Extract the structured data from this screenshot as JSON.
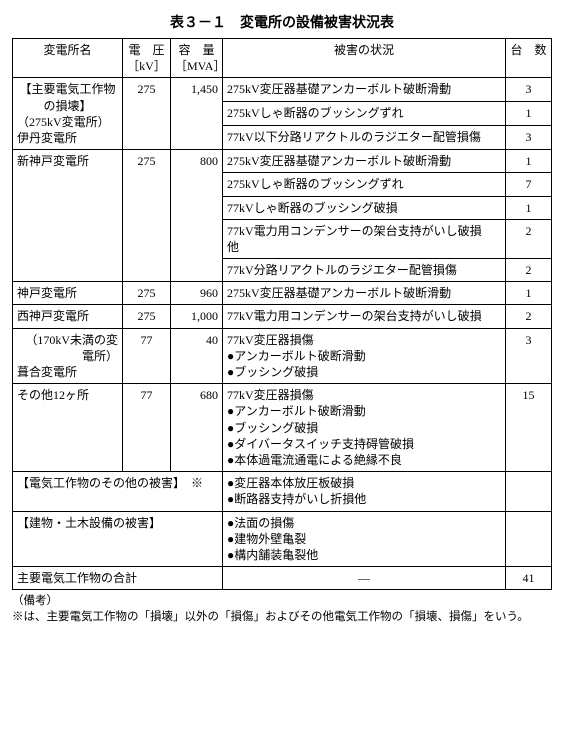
{
  "title": "表３－１　変電所の設備被害状況表",
  "headers": {
    "name": "変電所名",
    "kv": "電　圧\n［kV］",
    "mva": "容　量\n［MVA］",
    "damage": "被害の状況",
    "count": "台　数"
  },
  "sections": {
    "major_275_head1": "【主要電気工作物の損壊】",
    "major_275_head2": "（275kV変電所）",
    "itami": {
      "name": "伊丹変電所",
      "kv": "275",
      "mva": "1,450",
      "rows": [
        {
          "damage": "275kV変圧器基礎アンカーボルト破断滑動",
          "count": "3"
        },
        {
          "damage": "275kVしゃ断器のブッシングずれ",
          "count": "1"
        },
        {
          "damage": "77kV以下分路リアクトルのラジエター配管損傷",
          "count": "3"
        }
      ]
    },
    "shinkobe": {
      "name": "新神戸変電所",
      "kv": "275",
      "mva": "800",
      "rows": [
        {
          "damage": "275kV変圧器基礎アンカーボルト破断滑動",
          "count": "1"
        },
        {
          "damage": "275kVしゃ断器のブッシングずれ",
          "count": "7"
        },
        {
          "damage": "77kVしゃ断器のブッシング破損",
          "count": "1"
        },
        {
          "damage": "77kV電力用コンデンサーの架台支持がいし破損　他",
          "count": "2"
        },
        {
          "damage": "77kV分路リアクトルのラジエター配管損傷",
          "count": "2"
        }
      ]
    },
    "kobe": {
      "name": "神戸変電所",
      "kv": "275",
      "mva": "960",
      "rows": [
        {
          "damage": "275kV変圧器基礎アンカーボルト破断滑動",
          "count": "1"
        }
      ]
    },
    "nishikobe": {
      "name": "西神戸変電所",
      "kv": "275",
      "mva": "1,000",
      "rows": [
        {
          "damage": "77kV電力用コンデンサーの架台支持がいし破損",
          "count": "2"
        }
      ]
    },
    "lt170_head": "（170kV未満の変電所）",
    "houai": {
      "name": "葺合変電所",
      "kv": "77",
      "mva": "40",
      "lead": "77kV変圧器損傷",
      "bullets": [
        "アンカーボルト破断滑動",
        "ブッシング破損"
      ],
      "count": "3"
    },
    "others12": {
      "name": "その他12ヶ所",
      "kv": "77",
      "mva": "680",
      "lead": "77kV変圧器損傷",
      "bullets": [
        "アンカーボルト破断滑動",
        "ブッシング破損",
        "ダイバータスイッチ支持碍管破損",
        "本体過電流通電による絶縁不良"
      ],
      "count": "15"
    },
    "other_elec": {
      "label": "【電気工作物のその他の被害】　※",
      "bullets": [
        "変圧器本体放圧板破損",
        "断路器支持がいし折損他"
      ]
    },
    "civil": {
      "label": "【建物・土木設備の被害】",
      "bullets": [
        "法面の損傷",
        "建物外壁亀裂",
        "構内舗装亀裂他"
      ]
    },
    "total": {
      "label": "主要電気工作物の合計",
      "dash": "—",
      "count": "41"
    }
  },
  "notes": {
    "line1": "（備考）",
    "line2": "※は、主要電気工作物の「損壊」以外の「損傷」およびその他電気工作物の「損壊、損傷」をいう。"
  }
}
